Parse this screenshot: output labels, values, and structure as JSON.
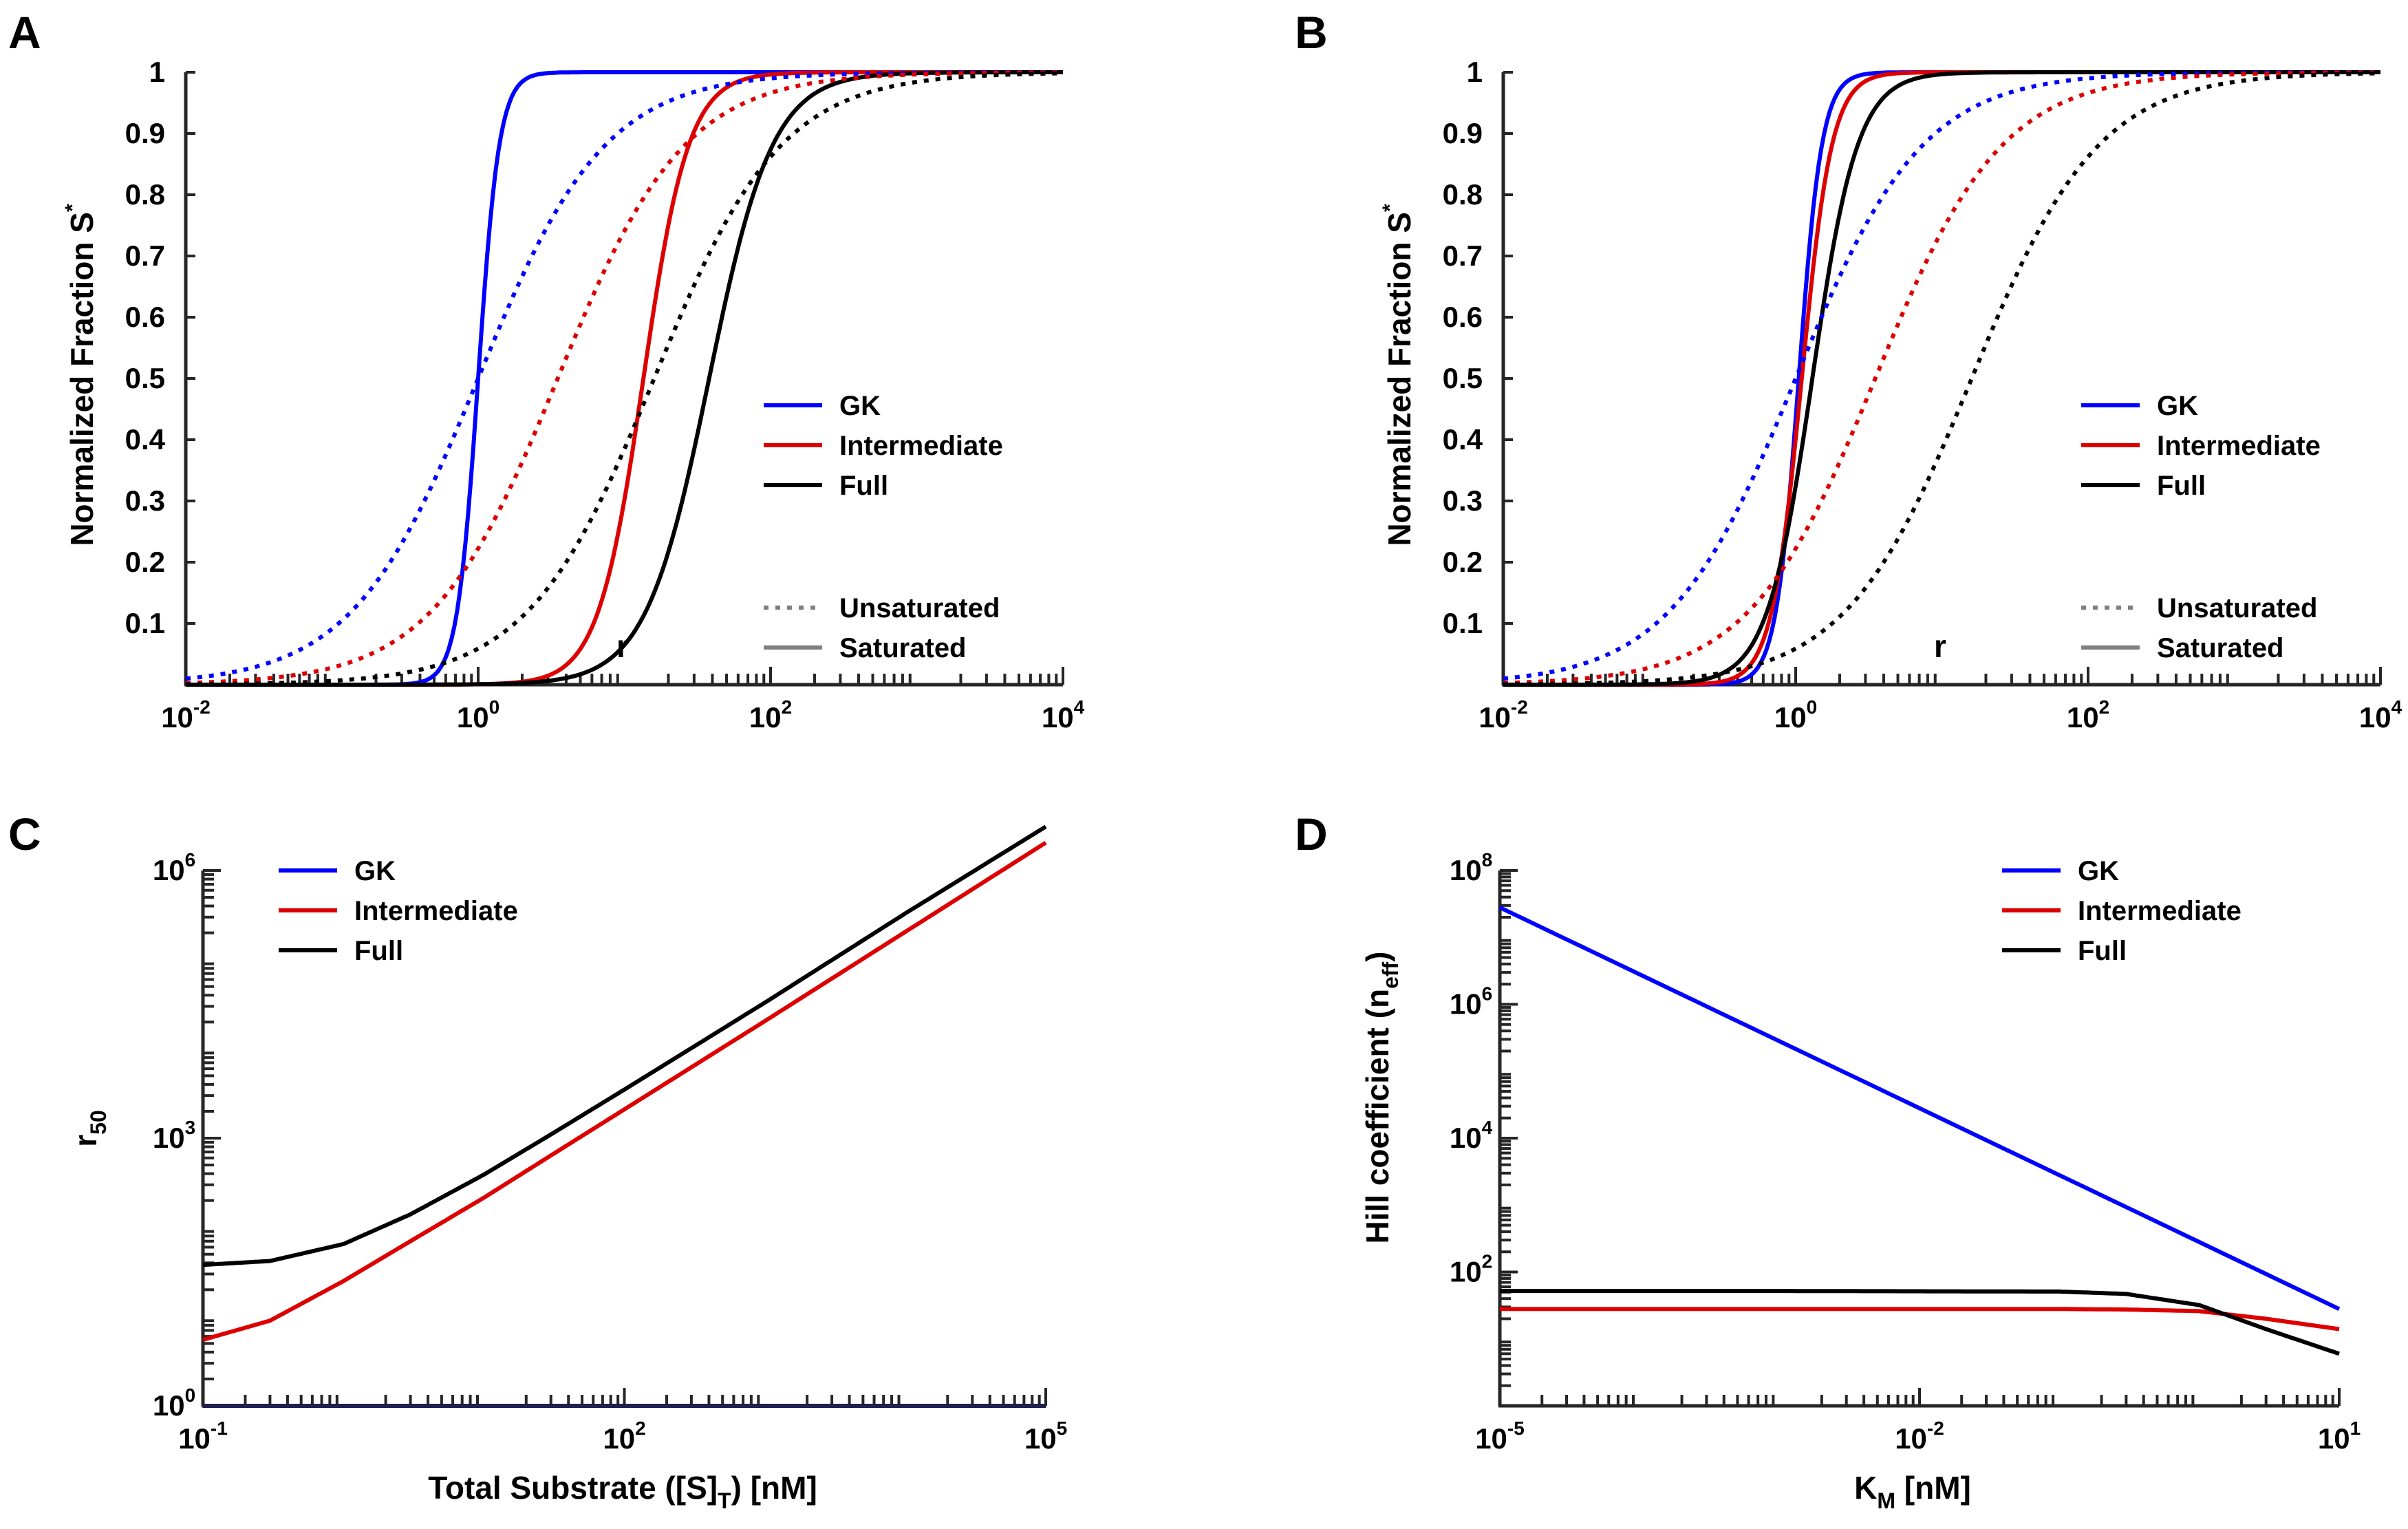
{
  "figure": {
    "panels": [
      {
        "letter": "A",
        "xlabel": "r",
        "ylabel_main": "Normalized Fraction S",
        "ylabel_sup": "*",
        "xlabel_sub": "",
        "xlabel_tail": "",
        "ylabel_sub": "",
        "ylabel_tail": ""
      },
      {
        "letter": "B",
        "xlabel": "r",
        "ylabel_main": "Normalized Fraction S",
        "ylabel_sup": "*",
        "xlabel_sub": "",
        "xlabel_tail": "",
        "ylabel_sub": "",
        "ylabel_tail": ""
      },
      {
        "letter": "C",
        "xlabel": "Total Substrate ([S]",
        "xlabel_sub": "T",
        "xlabel_tail": ") [nM]",
        "ylabel_main": "r",
        "ylabel_sub": "50",
        "ylabel_tail": "",
        "ylabel_sup": ""
      },
      {
        "letter": "D",
        "xlabel": "K",
        "xlabel_sub": "M",
        "xlabel_tail": " [nM]",
        "ylabel_main": "Hill coefficient (n",
        "ylabel_sub": "eff",
        "ylabel_tail": ")",
        "ylabel_sup": ""
      }
    ],
    "legend": {
      "gk": "GK",
      "intermediate": "Intermediate",
      "full": "Full",
      "unsaturated": "Unsaturated",
      "saturated": "Saturated"
    }
  },
  "colors": {
    "gk": "#0000ff",
    "intermediate": "#dd0000",
    "full": "#000000",
    "legend_style": "#7f7f7f",
    "axis": "#262626"
  },
  "chart_data": [
    {
      "panel": "A",
      "type": "line",
      "x_scale": "log",
      "xlabel": "r",
      "ylabel": "Normalized Fraction S*",
      "xlim": [
        0.01,
        10000
      ],
      "ylim": [
        0,
        1
      ],
      "xticks": [
        "10^-2",
        "10^0",
        "10^2",
        "10^4"
      ],
      "yticks": [
        0.1,
        0.2,
        0.3,
        0.4,
        0.5,
        0.6,
        0.7,
        0.8,
        0.9,
        1
      ],
      "legend_position": "center-right",
      "series": [
        {
          "name": "GK",
          "style": "Saturated",
          "r50": 1.0,
          "hill": 6.0
        },
        {
          "name": "Intermediate",
          "style": "Saturated",
          "r50": 13.5,
          "hill": 2.8
        },
        {
          "name": "Full",
          "style": "Saturated",
          "r50": 38,
          "hill": 2.0
        },
        {
          "name": "GK",
          "style": "Unsaturated",
          "r50": 1.0,
          "hill": 1.0
        },
        {
          "name": "Intermediate",
          "style": "Unsaturated",
          "r50": 3.5,
          "hill": 1.0
        },
        {
          "name": "Full",
          "style": "Unsaturated",
          "r50": 16,
          "hill": 1.0
        }
      ]
    },
    {
      "panel": "B",
      "type": "line",
      "x_scale": "log",
      "xlabel": "r",
      "ylabel": "Normalized Fraction S*",
      "xlim": [
        0.01,
        10000
      ],
      "ylim": [
        0,
        1
      ],
      "xticks": [
        "10^-2",
        "10^0",
        "10^2",
        "10^4"
      ],
      "yticks": [
        0.1,
        0.2,
        0.3,
        0.4,
        0.5,
        0.6,
        0.7,
        0.8,
        0.9,
        1
      ],
      "legend_position": "center-right",
      "series": [
        {
          "name": "GK",
          "style": "Saturated",
          "r50": 1.05,
          "hill": 5.5
        },
        {
          "name": "Intermediate",
          "style": "Saturated",
          "r50": 1.1,
          "hill": 4.2
        },
        {
          "name": "Full",
          "style": "Saturated",
          "r50": 1.3,
          "hill": 2.8
        },
        {
          "name": "GK",
          "style": "Unsaturated",
          "r50": 1.0,
          "hill": 1.0
        },
        {
          "name": "Intermediate",
          "style": "Unsaturated",
          "r50": 3.5,
          "hill": 1.0
        },
        {
          "name": "Full",
          "style": "Unsaturated",
          "r50": 16,
          "hill": 1.0
        }
      ]
    },
    {
      "panel": "C",
      "type": "line",
      "x_scale": "log",
      "y_scale": "log",
      "xlabel": "Total Substrate ([S]T) [nM]",
      "ylabel": "r50",
      "xlim": [
        0.1,
        100000
      ],
      "ylim": [
        1,
        1000000
      ],
      "xticks": [
        "10^-1",
        "10^2",
        "10^5"
      ],
      "yticks": [
        "10^0",
        "10^3",
        "10^6"
      ],
      "legend_position": "top-left",
      "series": [
        {
          "name": "GK",
          "x": [
            0.1,
            1,
            10,
            100,
            1000,
            10000,
            100000
          ],
          "y": [
            1,
            1,
            1,
            1,
            1,
            1,
            1
          ]
        },
        {
          "name": "Intermediate",
          "x": [
            0.1,
            0.3,
            1,
            3,
            10,
            30,
            100,
            1000,
            10000,
            100000
          ],
          "y": [
            5.5,
            9,
            25,
            70,
            215,
            640,
            2100,
            20500,
            205000,
            2050000
          ]
        },
        {
          "name": "Full",
          "x": [
            0.1,
            0.3,
            1,
            3,
            10,
            30,
            100,
            1000,
            10000,
            100000
          ],
          "y": [
            38,
            42,
            65,
            140,
            390,
            1100,
            3500,
            33000,
            330000,
            3100000
          ]
        }
      ]
    },
    {
      "panel": "D",
      "type": "line",
      "x_scale": "log",
      "y_scale": "log",
      "xlabel": "KM [nM]",
      "ylabel": "Hill coefficient (neff)",
      "xlim": [
        1e-05,
        10
      ],
      "ylim": [
        1,
        100000000
      ],
      "xticks": [
        "10^-5",
        "10^-2",
        "10^1"
      ],
      "yticks": [
        "10^2",
        "10^4",
        "10^6",
        "10^8"
      ],
      "legend_position": "top-right",
      "series": [
        {
          "name": "GK",
          "x": [
            1e-05,
            10
          ],
          "y": [
            28000000,
            28
          ]
        },
        {
          "name": "Intermediate",
          "x": [
            1e-05,
            0.001,
            0.1,
            0.3,
            1,
            3,
            10
          ],
          "y": [
            28,
            28,
            28,
            27.5,
            26,
            20,
            14
          ]
        },
        {
          "name": "Full",
          "x": [
            1e-05,
            0.001,
            0.1,
            0.3,
            1,
            3,
            10
          ],
          "y": [
            52,
            52,
            51,
            47,
            32,
            14,
            6
          ]
        }
      ]
    }
  ]
}
